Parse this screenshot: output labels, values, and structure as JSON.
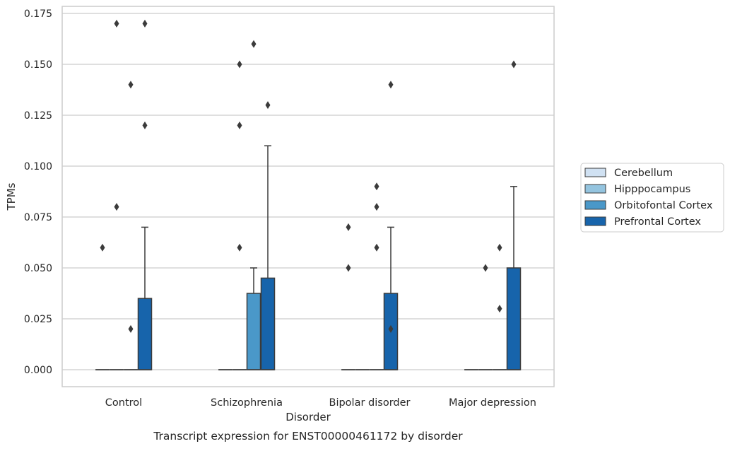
{
  "chart_data": {
    "type": "box",
    "title": "",
    "caption": "Transcript expression for ENST00000461172 by disorder",
    "xlabel": "Disorder",
    "ylabel": "TPMs",
    "ylim": [
      -0.0085,
      0.179
    ],
    "yticks": [
      "0.000",
      "0.025",
      "0.050",
      "0.075",
      "0.100",
      "0.125",
      "0.150",
      "0.175"
    ],
    "ytick_values": [
      0,
      0.025,
      0.05,
      0.075,
      0.1,
      0.125,
      0.15,
      0.175
    ],
    "grid": "horizontal",
    "legend_position": "right",
    "categories": [
      "Control",
      "Schizophrenia",
      "Bipolar disorder",
      "Major depression"
    ],
    "series": [
      {
        "name": "Cerebellum",
        "color": "#d0e1f2",
        "boxes": [
          {
            "q1": 0,
            "median": 0,
            "q3": 0,
            "whisker_low": 0,
            "whisker_high": 0,
            "outliers": [
              0.06
            ]
          },
          {
            "q1": 0,
            "median": 0,
            "q3": 0,
            "whisker_low": 0,
            "whisker_high": 0,
            "outliers": []
          },
          {
            "q1": 0,
            "median": 0,
            "q3": 0,
            "whisker_low": 0,
            "whisker_high": 0,
            "outliers": [
              0.05,
              0.07
            ]
          },
          {
            "q1": 0,
            "median": 0,
            "q3": 0,
            "whisker_low": 0,
            "whisker_high": 0,
            "outliers": []
          }
        ]
      },
      {
        "name": "Hipppocampus",
        "color": "#94c4df",
        "boxes": [
          {
            "q1": 0,
            "median": 0,
            "q3": 0,
            "whisker_low": 0,
            "whisker_high": 0,
            "outliers": [
              0.08,
              0.17
            ]
          },
          {
            "q1": 0,
            "median": 0,
            "q3": 0,
            "whisker_low": 0,
            "whisker_high": 0,
            "outliers": [
              0.06,
              0.12,
              0.15
            ]
          },
          {
            "q1": 0,
            "median": 0,
            "q3": 0,
            "whisker_low": 0,
            "whisker_high": 0,
            "outliers": []
          },
          {
            "q1": 0,
            "median": 0,
            "q3": 0,
            "whisker_low": 0,
            "whisker_high": 0,
            "outliers": [
              0.05
            ]
          }
        ]
      },
      {
        "name": "Orbitofontal Cortex",
        "color": "#4a98c9",
        "boxes": [
          {
            "q1": 0,
            "median": 0,
            "q3": 0,
            "whisker_low": 0,
            "whisker_high": 0,
            "outliers": [
              0.02,
              0.14
            ]
          },
          {
            "q1": 0,
            "median": 0,
            "q3": 0.0375,
            "whisker_low": 0,
            "whisker_high": 0.05,
            "outliers": [
              0.16
            ]
          },
          {
            "q1": 0,
            "median": 0,
            "q3": 0,
            "whisker_low": 0,
            "whisker_high": 0,
            "outliers": [
              0.06,
              0.08,
              0.09
            ]
          },
          {
            "q1": 0,
            "median": 0,
            "q3": 0,
            "whisker_low": 0,
            "whisker_high": 0,
            "outliers": [
              0.03,
              0.06
            ]
          }
        ]
      },
      {
        "name": "Prefrontal Cortex",
        "color": "#1764ab",
        "boxes": [
          {
            "q1": 0,
            "median": 0,
            "q3": 0.035,
            "whisker_low": 0,
            "whisker_high": 0.07,
            "outliers": [
              0.12,
              0.17
            ]
          },
          {
            "q1": 0,
            "median": 0,
            "q3": 0.045,
            "whisker_low": 0,
            "whisker_high": 0.11,
            "outliers": [
              0.13
            ]
          },
          {
            "q1": 0,
            "median": 0,
            "q3": 0.0375,
            "whisker_low": 0,
            "whisker_high": 0.07,
            "outliers": [
              0.02,
              0.14
            ]
          },
          {
            "q1": 0,
            "median": 0,
            "q3": 0.05,
            "whisker_low": 0,
            "whisker_high": 0.09,
            "outliers": [
              0.15
            ]
          }
        ]
      }
    ]
  }
}
